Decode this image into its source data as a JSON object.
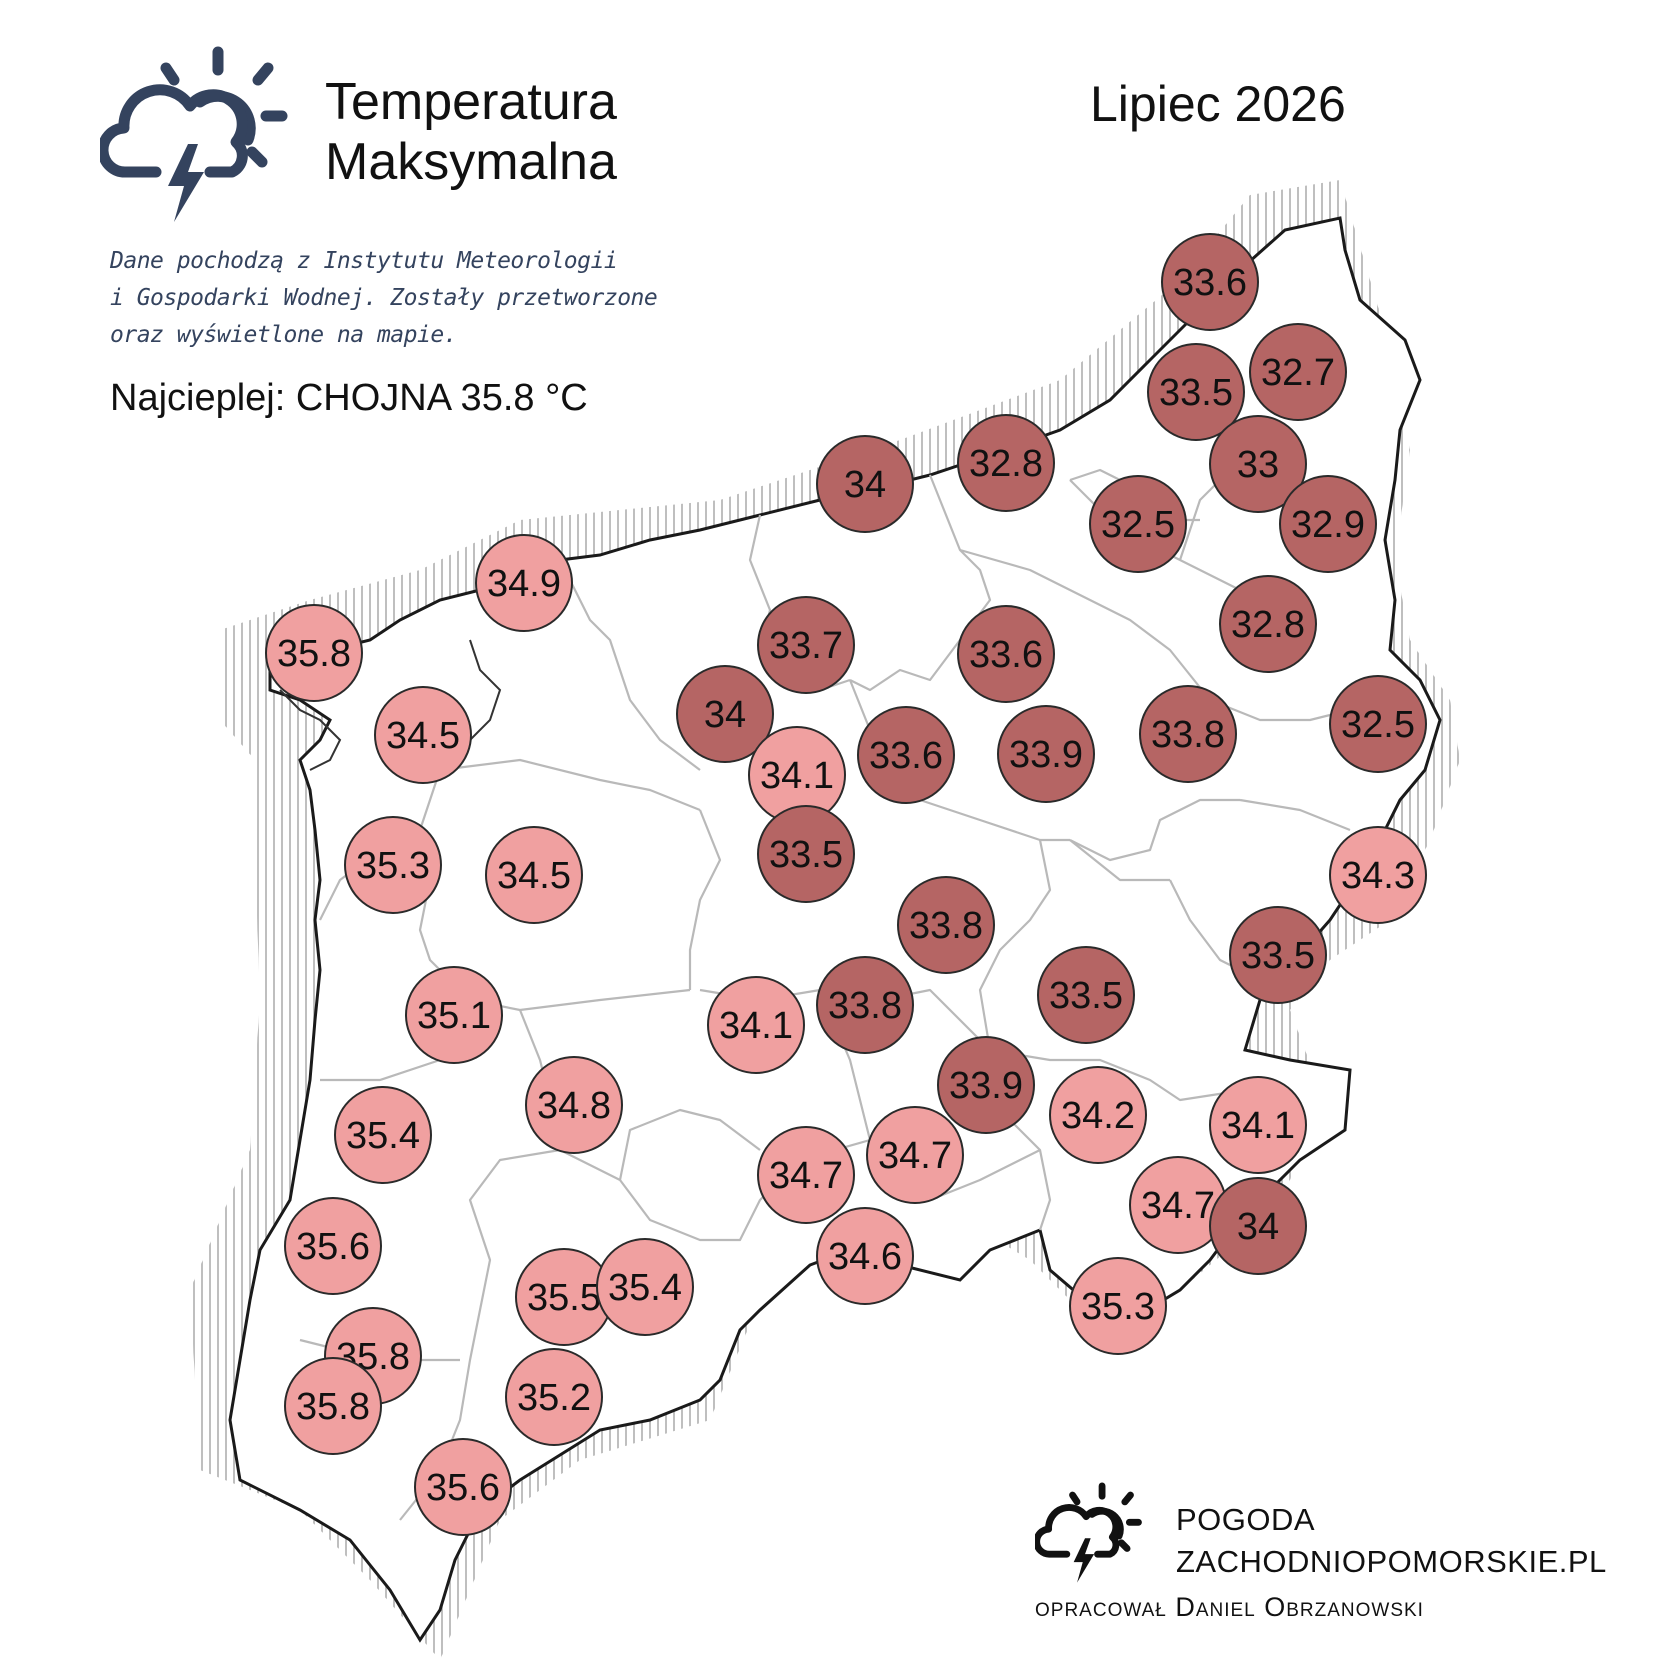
{
  "header": {
    "title_line1": "Temperatura",
    "title_line2": "Maksymalna",
    "period": "Lipiec 2026",
    "source_lines": [
      "Dane pochodzą z Instytutu Meteorologii",
      "i Gospodarki Wodnej. Zostały przetworzone",
      "oraz wyświetlone na mapie."
    ],
    "hottest": "Najcieplej: CHOJNA 35.8 °C"
  },
  "footer": {
    "brand_line1": "POGODA",
    "brand_line2": "ZACHODNIOPOMORSKIE.PL",
    "author": "opracował Daniel Obrzanowski"
  },
  "icons": {
    "logo": "storm-cloud-sun-icon"
  },
  "colors": {
    "warm": "#f0a0a0",
    "cool": "#b56564",
    "outline": "#2a2a2a",
    "map_fill": "#ffffff",
    "map_border": "#1a1a1a",
    "title_text": "#34435e"
  },
  "map_data": {
    "region": "Województwo zachodniopomorskie",
    "threshold_note": "light >= 34.1, dark <= 34",
    "stations": [
      {
        "value": "33.6",
        "level": "cool"
      },
      {
        "value": "33.5",
        "level": "cool"
      },
      {
        "value": "32.7",
        "level": "cool"
      },
      {
        "value": "33",
        "level": "cool"
      },
      {
        "value": "32.8",
        "level": "cool"
      },
      {
        "value": "34",
        "level": "cool"
      },
      {
        "value": "32.5",
        "level": "cool"
      },
      {
        "value": "32.9",
        "level": "cool"
      },
      {
        "value": "34.9",
        "level": "warm"
      },
      {
        "value": "35.8",
        "level": "warm"
      },
      {
        "value": "33.7",
        "level": "cool"
      },
      {
        "value": "33.6",
        "level": "cool"
      },
      {
        "value": "32.8",
        "level": "cool"
      },
      {
        "value": "34",
        "level": "cool"
      },
      {
        "value": "34.5",
        "level": "warm"
      },
      {
        "value": "33.6",
        "level": "cool"
      },
      {
        "value": "33.9",
        "level": "cool"
      },
      {
        "value": "33.8",
        "level": "cool"
      },
      {
        "value": "32.5",
        "level": "cool"
      },
      {
        "value": "34.1",
        "level": "warm"
      },
      {
        "value": "35.3",
        "level": "warm"
      },
      {
        "value": "34.5",
        "level": "warm"
      },
      {
        "value": "33.5",
        "level": "cool"
      },
      {
        "value": "34.3",
        "level": "warm"
      },
      {
        "value": "33.8",
        "level": "cool"
      },
      {
        "value": "33.5",
        "level": "cool"
      },
      {
        "value": "35.1",
        "level": "warm"
      },
      {
        "value": "34.1",
        "level": "warm"
      },
      {
        "value": "33.8",
        "level": "cool"
      },
      {
        "value": "33.5",
        "level": "cool"
      },
      {
        "value": "34.8",
        "level": "warm"
      },
      {
        "value": "33.9",
        "level": "cool"
      },
      {
        "value": "34.2",
        "level": "warm"
      },
      {
        "value": "34.1",
        "level": "warm"
      },
      {
        "value": "35.4",
        "level": "warm"
      },
      {
        "value": "34.7",
        "level": "warm"
      },
      {
        "value": "34.7",
        "level": "warm"
      },
      {
        "value": "34.7",
        "level": "warm"
      },
      {
        "value": "34",
        "level": "cool"
      },
      {
        "value": "35.6",
        "level": "warm"
      },
      {
        "value": "34.6",
        "level": "warm"
      },
      {
        "value": "35.5",
        "level": "warm"
      },
      {
        "value": "35.4",
        "level": "warm"
      },
      {
        "value": "35.3",
        "level": "warm"
      },
      {
        "value": "35.8",
        "level": "warm"
      },
      {
        "value": "35.8",
        "level": "warm"
      },
      {
        "value": "35.2",
        "level": "warm"
      },
      {
        "value": "35.6",
        "level": "warm"
      }
    ]
  }
}
